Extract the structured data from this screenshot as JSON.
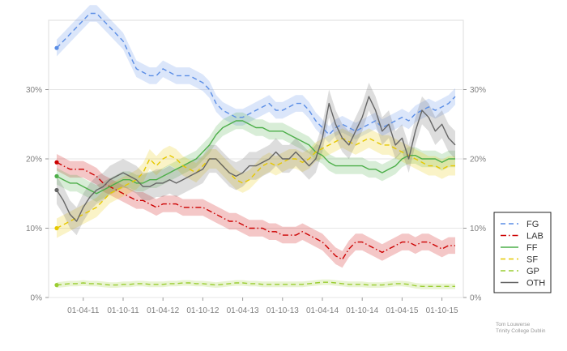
{
  "chart_data": {
    "type": "line",
    "title": "",
    "xlabel": "",
    "ylabel": "",
    "ylim": [
      0,
      0.4
    ],
    "y_ticks": [
      0,
      0.1,
      0.2,
      0.3
    ],
    "y_tick_labels": [
      "0%",
      "10%",
      "20%",
      "30%"
    ],
    "x_range": [
      0,
      60
    ],
    "x_ticks": [
      4,
      10,
      16,
      22,
      28,
      34,
      40,
      46,
      52,
      58
    ],
    "x_tick_labels": [
      "01-04-11",
      "01-10-11",
      "01-04-12",
      "01-10-12",
      "01-04-13",
      "01-10-13",
      "01-04-14",
      "01-10-14",
      "01-04-15",
      "01-10-15"
    ],
    "legend_position": "right",
    "series": [
      {
        "name": "FG",
        "color": "#5b8ee6",
        "dash": "6,4",
        "band": 0.012,
        "x": [
          0,
          1,
          2,
          3,
          4,
          5,
          6,
          7,
          8,
          9,
          10,
          11,
          12,
          13,
          14,
          15,
          16,
          17,
          18,
          19,
          20,
          21,
          22,
          23,
          24,
          25,
          26,
          27,
          28,
          29,
          30,
          31,
          32,
          33,
          34,
          35,
          36,
          37,
          38,
          39,
          40,
          41,
          42,
          43,
          44,
          45,
          46,
          47,
          48,
          49,
          50,
          51,
          52,
          53,
          54,
          55,
          56,
          57,
          58,
          59,
          60
        ],
        "y": [
          0.36,
          0.37,
          0.38,
          0.39,
          0.4,
          0.41,
          0.41,
          0.4,
          0.39,
          0.38,
          0.37,
          0.35,
          0.33,
          0.325,
          0.32,
          0.32,
          0.33,
          0.325,
          0.32,
          0.32,
          0.32,
          0.315,
          0.31,
          0.3,
          0.28,
          0.27,
          0.265,
          0.26,
          0.26,
          0.265,
          0.27,
          0.275,
          0.28,
          0.27,
          0.27,
          0.275,
          0.28,
          0.28,
          0.27,
          0.255,
          0.245,
          0.235,
          0.245,
          0.25,
          0.245,
          0.24,
          0.245,
          0.25,
          0.255,
          0.245,
          0.25,
          0.255,
          0.26,
          0.255,
          0.265,
          0.27,
          0.275,
          0.27,
          0.275,
          0.28,
          0.29
        ]
      },
      {
        "name": "LAB",
        "color": "#cc0000",
        "dash": "7,3,1.5,3",
        "band": 0.012,
        "x": [
          0,
          1,
          2,
          3,
          4,
          5,
          6,
          7,
          8,
          9,
          10,
          11,
          12,
          13,
          14,
          15,
          16,
          17,
          18,
          19,
          20,
          21,
          22,
          23,
          24,
          25,
          26,
          27,
          28,
          29,
          30,
          31,
          32,
          33,
          34,
          35,
          36,
          37,
          38,
          39,
          40,
          41,
          42,
          43,
          44,
          45,
          46,
          47,
          48,
          49,
          50,
          51,
          52,
          53,
          54,
          55,
          56,
          57,
          58,
          59,
          60
        ],
        "y": [
          0.195,
          0.19,
          0.185,
          0.185,
          0.185,
          0.18,
          0.175,
          0.165,
          0.16,
          0.155,
          0.15,
          0.145,
          0.14,
          0.14,
          0.135,
          0.13,
          0.135,
          0.135,
          0.135,
          0.13,
          0.13,
          0.13,
          0.13,
          0.125,
          0.12,
          0.115,
          0.11,
          0.11,
          0.105,
          0.1,
          0.1,
          0.1,
          0.095,
          0.095,
          0.09,
          0.09,
          0.09,
          0.095,
          0.09,
          0.085,
          0.08,
          0.07,
          0.06,
          0.055,
          0.07,
          0.08,
          0.08,
          0.075,
          0.07,
          0.065,
          0.07,
          0.075,
          0.08,
          0.08,
          0.075,
          0.08,
          0.08,
          0.075,
          0.07,
          0.075,
          0.075
        ]
      },
      {
        "name": "FF",
        "color": "#4daf4a",
        "dash": "",
        "band": 0.012,
        "x": [
          0,
          1,
          2,
          3,
          4,
          5,
          6,
          7,
          8,
          9,
          10,
          11,
          12,
          13,
          14,
          15,
          16,
          17,
          18,
          19,
          20,
          21,
          22,
          23,
          24,
          25,
          26,
          27,
          28,
          29,
          30,
          31,
          32,
          33,
          34,
          35,
          36,
          37,
          38,
          39,
          40,
          41,
          42,
          43,
          44,
          45,
          46,
          47,
          48,
          49,
          50,
          51,
          52,
          53,
          54,
          55,
          56,
          57,
          58,
          59,
          60
        ],
        "y": [
          0.175,
          0.17,
          0.165,
          0.165,
          0.16,
          0.155,
          0.15,
          0.155,
          0.16,
          0.165,
          0.17,
          0.17,
          0.165,
          0.165,
          0.17,
          0.17,
          0.175,
          0.18,
          0.185,
          0.19,
          0.195,
          0.2,
          0.21,
          0.22,
          0.235,
          0.245,
          0.25,
          0.255,
          0.255,
          0.25,
          0.245,
          0.245,
          0.24,
          0.24,
          0.24,
          0.235,
          0.23,
          0.225,
          0.22,
          0.21,
          0.205,
          0.195,
          0.19,
          0.19,
          0.19,
          0.19,
          0.19,
          0.185,
          0.185,
          0.18,
          0.185,
          0.19,
          0.2,
          0.205,
          0.205,
          0.2,
          0.2,
          0.2,
          0.195,
          0.2,
          0.2
        ]
      },
      {
        "name": "SF",
        "color": "#e6c800",
        "dash": "6,4",
        "band": 0.014,
        "x": [
          0,
          1,
          2,
          3,
          4,
          5,
          6,
          7,
          8,
          9,
          10,
          11,
          12,
          13,
          14,
          15,
          16,
          17,
          18,
          19,
          20,
          21,
          22,
          23,
          24,
          25,
          26,
          27,
          28,
          29,
          30,
          31,
          32,
          33,
          34,
          35,
          36,
          37,
          38,
          39,
          40,
          41,
          42,
          43,
          44,
          45,
          46,
          47,
          48,
          49,
          50,
          51,
          52,
          53,
          54,
          55,
          56,
          57,
          58,
          59,
          60
        ],
        "y": [
          0.1,
          0.105,
          0.11,
          0.115,
          0.12,
          0.125,
          0.13,
          0.14,
          0.15,
          0.155,
          0.16,
          0.165,
          0.17,
          0.18,
          0.2,
          0.19,
          0.2,
          0.205,
          0.2,
          0.19,
          0.185,
          0.18,
          0.19,
          0.2,
          0.2,
          0.19,
          0.18,
          0.17,
          0.165,
          0.17,
          0.18,
          0.19,
          0.195,
          0.19,
          0.195,
          0.2,
          0.2,
          0.195,
          0.2,
          0.21,
          0.215,
          0.22,
          0.225,
          0.23,
          0.225,
          0.22,
          0.225,
          0.23,
          0.225,
          0.22,
          0.22,
          0.215,
          0.21,
          0.205,
          0.2,
          0.195,
          0.19,
          0.19,
          0.185,
          0.19,
          0.19
        ]
      },
      {
        "name": "GP",
        "color": "#9acd32",
        "dash": "6,4",
        "band": 0.004,
        "x": [
          0,
          1,
          2,
          3,
          4,
          5,
          6,
          7,
          8,
          9,
          10,
          11,
          12,
          13,
          14,
          15,
          16,
          17,
          18,
          19,
          20,
          21,
          22,
          23,
          24,
          25,
          26,
          27,
          28,
          29,
          30,
          31,
          32,
          33,
          34,
          35,
          36,
          37,
          38,
          39,
          40,
          41,
          42,
          43,
          44,
          45,
          46,
          47,
          48,
          49,
          50,
          51,
          52,
          53,
          54,
          55,
          56,
          57,
          58,
          59,
          60
        ],
        "y": [
          0.018,
          0.019,
          0.02,
          0.02,
          0.021,
          0.02,
          0.02,
          0.019,
          0.018,
          0.018,
          0.019,
          0.019,
          0.02,
          0.02,
          0.019,
          0.019,
          0.019,
          0.02,
          0.02,
          0.021,
          0.021,
          0.02,
          0.02,
          0.019,
          0.018,
          0.019,
          0.02,
          0.021,
          0.021,
          0.02,
          0.02,
          0.019,
          0.019,
          0.019,
          0.019,
          0.019,
          0.019,
          0.019,
          0.02,
          0.021,
          0.022,
          0.022,
          0.021,
          0.02,
          0.019,
          0.019,
          0.019,
          0.018,
          0.018,
          0.018,
          0.019,
          0.02,
          0.02,
          0.019,
          0.017,
          0.016,
          0.016,
          0.016,
          0.016,
          0.016,
          0.016
        ]
      },
      {
        "name": "OTH",
        "color": "#666666",
        "dash": "",
        "band": 0.02,
        "x": [
          0,
          1,
          2,
          3,
          4,
          5,
          6,
          7,
          8,
          9,
          10,
          11,
          12,
          13,
          14,
          15,
          16,
          17,
          18,
          19,
          20,
          21,
          22,
          23,
          24,
          25,
          26,
          27,
          28,
          29,
          30,
          31,
          32,
          33,
          34,
          35,
          36,
          37,
          38,
          39,
          40,
          41,
          42,
          43,
          44,
          45,
          46,
          47,
          48,
          49,
          50,
          51,
          52,
          53,
          54,
          55,
          56,
          57,
          58,
          59,
          60
        ],
        "y": [
          0.155,
          0.14,
          0.12,
          0.11,
          0.13,
          0.145,
          0.155,
          0.16,
          0.17,
          0.175,
          0.18,
          0.175,
          0.17,
          0.16,
          0.16,
          0.165,
          0.165,
          0.17,
          0.165,
          0.17,
          0.175,
          0.18,
          0.185,
          0.2,
          0.2,
          0.19,
          0.18,
          0.175,
          0.18,
          0.19,
          0.19,
          0.195,
          0.2,
          0.21,
          0.2,
          0.2,
          0.21,
          0.2,
          0.19,
          0.2,
          0.23,
          0.28,
          0.25,
          0.23,
          0.22,
          0.24,
          0.26,
          0.29,
          0.27,
          0.24,
          0.25,
          0.22,
          0.23,
          0.2,
          0.24,
          0.27,
          0.26,
          0.24,
          0.25,
          0.23,
          0.22
        ]
      }
    ]
  },
  "credit": {
    "line1": "Tom Louwerse",
    "line2": "Trinity College Dublin"
  }
}
